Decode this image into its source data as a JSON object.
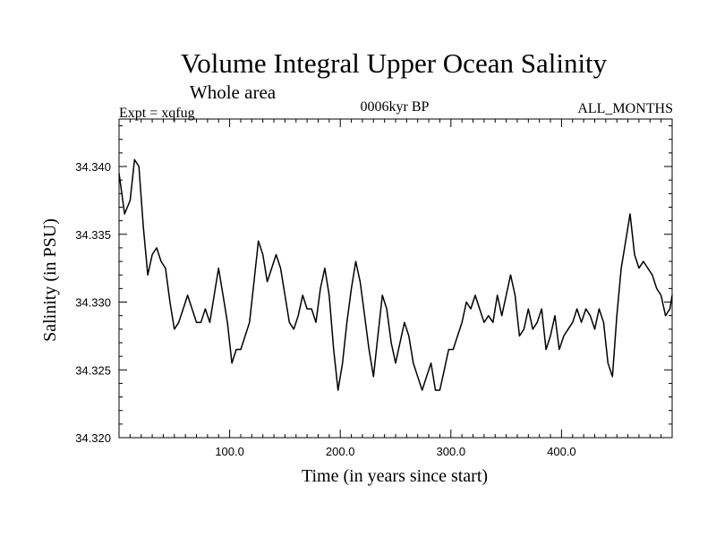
{
  "chart_data": {
    "type": "line",
    "title": "Volume Integral Upper Ocean Salinity",
    "subtitle": "Whole area",
    "expt_label": "Expt = xqfug",
    "period_label": "0006kyr BP",
    "months_label": "ALL_MONTHS",
    "xlabel": "Time (in years since start)",
    "ylabel": "Salinity (in PSU)",
    "xlim": [
      0,
      500
    ],
    "ylim": [
      34.32,
      34.3435
    ],
    "x_ticks": [
      100,
      200,
      300,
      400
    ],
    "x_tick_labels": [
      "100.0",
      "200.0",
      "300.0",
      "400.0"
    ],
    "y_ticks": [
      34.32,
      34.325,
      34.33,
      34.335,
      34.34
    ],
    "y_tick_labels": [
      "34.320",
      "34.325",
      "34.330",
      "34.335",
      "34.340"
    ],
    "series": [
      {
        "name": "Salinity",
        "x": [
          0,
          5,
          10,
          14,
          18,
          22,
          26,
          30,
          34,
          38,
          42,
          46,
          50,
          54,
          58,
          62,
          66,
          70,
          74,
          78,
          82,
          86,
          90,
          94,
          98,
          102,
          106,
          110,
          114,
          118,
          122,
          126,
          130,
          134,
          138,
          142,
          146,
          150,
          154,
          158,
          162,
          166,
          170,
          174,
          178,
          182,
          186,
          190,
          194,
          198,
          202,
          206,
          210,
          214,
          218,
          222,
          226,
          230,
          234,
          238,
          242,
          246,
          250,
          254,
          258,
          262,
          266,
          270,
          274,
          278,
          282,
          286,
          290,
          294,
          298,
          302,
          306,
          310,
          314,
          318,
          322,
          326,
          330,
          334,
          338,
          342,
          346,
          350,
          354,
          358,
          362,
          366,
          370,
          374,
          378,
          382,
          386,
          390,
          394,
          398,
          402,
          406,
          410,
          414,
          418,
          422,
          426,
          430,
          434,
          438,
          442,
          446,
          450,
          454,
          458,
          462,
          466,
          470,
          474,
          478,
          482,
          486,
          490,
          494,
          498,
          500
        ],
        "values": [
          34.3395,
          34.3365,
          34.3375,
          34.3405,
          34.34,
          34.3355,
          34.332,
          34.3335,
          34.334,
          34.333,
          34.3325,
          34.33,
          34.328,
          34.3285,
          34.3295,
          34.3305,
          34.3295,
          34.3285,
          34.3285,
          34.3295,
          34.3285,
          34.3305,
          34.3325,
          34.3305,
          34.3285,
          34.3255,
          34.3265,
          34.3265,
          34.3275,
          34.3285,
          34.3315,
          34.3345,
          34.3335,
          34.3315,
          34.3325,
          34.3335,
          34.3325,
          34.3305,
          34.3285,
          34.328,
          34.329,
          34.3305,
          34.3295,
          34.3295,
          34.3285,
          34.331,
          34.3325,
          34.3305,
          34.3265,
          34.3235,
          34.3255,
          34.3285,
          34.331,
          34.333,
          34.3315,
          34.329,
          34.3265,
          34.3245,
          34.3275,
          34.3305,
          34.3295,
          34.327,
          34.3255,
          34.327,
          34.3285,
          34.3275,
          34.3255,
          34.3245,
          34.3235,
          34.3245,
          34.3255,
          34.3235,
          34.3235,
          34.325,
          34.3265,
          34.3265,
          34.3275,
          34.3285,
          34.33,
          34.3295,
          34.3305,
          34.3295,
          34.3285,
          34.329,
          34.3285,
          34.3305,
          34.329,
          34.3305,
          34.332,
          34.3305,
          34.3275,
          34.328,
          34.3295,
          34.328,
          34.3285,
          34.3295,
          34.3265,
          34.3275,
          34.329,
          34.3265,
          34.3275,
          34.328,
          34.3285,
          34.3295,
          34.3285,
          34.3295,
          34.329,
          34.328,
          34.3295,
          34.3285,
          34.3255,
          34.3245,
          34.329,
          34.3325,
          34.3345,
          34.3365,
          34.3335,
          34.3325,
          34.333,
          34.3325,
          34.332,
          34.331,
          34.3305,
          34.329,
          34.3295,
          34.3305
        ]
      }
    ]
  }
}
